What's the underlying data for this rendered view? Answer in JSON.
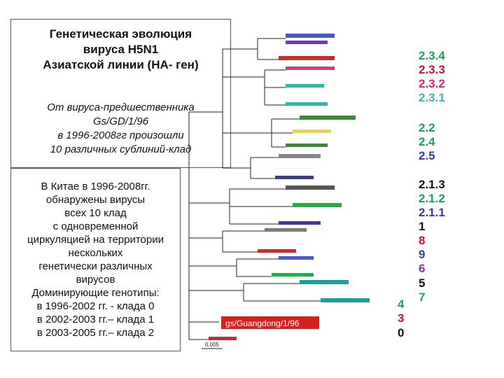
{
  "title": {
    "lines": [
      "Генетическая эволюция",
      "вируса H5N1",
      "Азиатской линии (HA- ген)"
    ]
  },
  "subtitle": {
    "lines": [
      "От вируса-предшественника",
      "Gs/GD/1/96",
      "в 1996-2008гг произошли",
      "10 различных сублиний-клад"
    ]
  },
  "info": {
    "lines": [
      "В Китае в 1996-2008гг.",
      "обнаружены вирусы",
      "всех 10 клад",
      "с одновременной",
      "циркуляцией на территории",
      "нескольких",
      "генетически различных",
      "вирусов",
      "Доминирующие генотипы:",
      "в 1996-2002 гг. - клада 0",
      "в 2002-2003 гг.– клада 1",
      "в 2003-2005 гг.– клада 2"
    ]
  },
  "clades": {
    "c234": {
      "label": "2.3.4",
      "color": "#1e9e55"
    },
    "c233": {
      "label": "2.3.3",
      "color": "#c8102e"
    },
    "c232": {
      "label": "2.3.2",
      "color": "#e0207a"
    },
    "c231": {
      "label": "2.3.1",
      "color": "#3bb8a8"
    },
    "c22": {
      "label": "2.2",
      "color": "#1e9e55"
    },
    "c24": {
      "label": "2.4",
      "color": "#1e9e55"
    },
    "c25": {
      "label": "2.5",
      "color": "#3a3a9a"
    },
    "c213": {
      "label": "2.1.3",
      "color": "#111111"
    },
    "c212": {
      "label": "2.1.2",
      "color": "#1e9e55"
    },
    "c211": {
      "label": "2.1.1",
      "color": "#3a3a9a"
    },
    "c1": {
      "label": "1",
      "color": "#111111"
    },
    "c8": {
      "label": "8",
      "color": "#c8102e"
    },
    "c9": {
      "label": "9",
      "color": "#3a3a9a"
    },
    "c6": {
      "label": "6",
      "color": "#7a3a9a"
    },
    "c5": {
      "label": "5",
      "color": "#111111"
    },
    "c7": {
      "label": "7",
      "color": "#1e9e9e"
    },
    "c4": {
      "label": "4",
      "color": "#1e9e55"
    },
    "c3": {
      "label": "3",
      "color": "#c8102e"
    },
    "c0": {
      "label": "0",
      "color": "#111111"
    }
  },
  "tree": {
    "root_label": "gs/Guangdong/1/96",
    "root_color": "#d42020",
    "scale_label": "0.005"
  }
}
